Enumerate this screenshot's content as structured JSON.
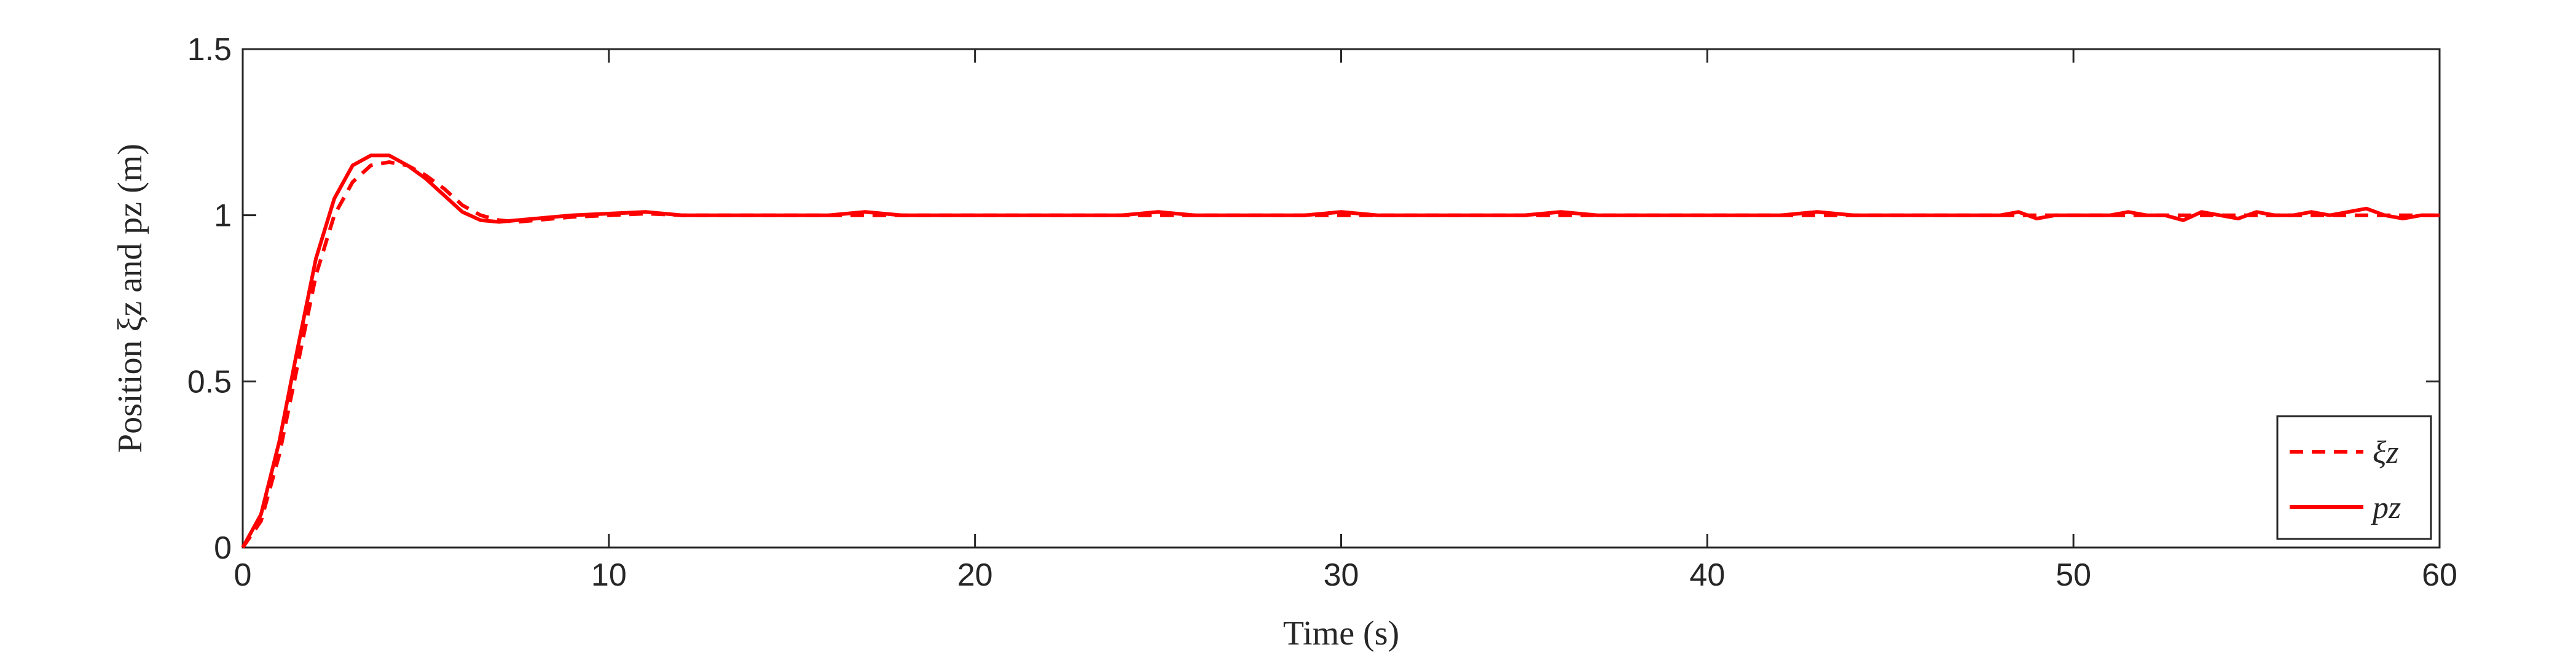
{
  "chart_data": {
    "type": "line",
    "xlabel": "Time (s)",
    "ylabel": "Position ξz and pz (m)",
    "xlim": [
      0,
      60
    ],
    "ylim": [
      0,
      1.5
    ],
    "x_ticks": [
      "0",
      "10",
      "20",
      "30",
      "40",
      "50",
      "60"
    ],
    "y_ticks": [
      "0",
      "0.5",
      "1",
      "1.5"
    ],
    "grid": false,
    "legend_position": "bottom-right",
    "series": [
      {
        "name": "ξz",
        "style": "dashed",
        "color": "#ff0000",
        "x": [
          0,
          0.5,
          1,
          1.5,
          2,
          2.5,
          3,
          3.5,
          4,
          4.5,
          5,
          5.5,
          6,
          6.5,
          7,
          7.5,
          8,
          9,
          10,
          11,
          12,
          13,
          14,
          15,
          16,
          17,
          18,
          19,
          20,
          21,
          22,
          23,
          24,
          25,
          26,
          27,
          28,
          29,
          30,
          31,
          32,
          33,
          34,
          35,
          36,
          37,
          38,
          39,
          40,
          41,
          42,
          43,
          44,
          45,
          46,
          47,
          48,
          49,
          50,
          51,
          52,
          53,
          54,
          55,
          56,
          57,
          58,
          59,
          60
        ],
        "y": [
          0,
          0.08,
          0.28,
          0.55,
          0.82,
          1.0,
          1.1,
          1.15,
          1.16,
          1.15,
          1.12,
          1.08,
          1.03,
          1.0,
          0.985,
          0.98,
          0.985,
          0.995,
          1.0,
          1.005,
          1.0,
          1.0,
          1.0,
          1.0,
          1.0,
          1.0,
          1.0,
          1.0,
          1.0,
          1.0,
          1.0,
          1.0,
          1.0,
          1.0,
          1.0,
          1.0,
          1.0,
          1.0,
          1.0,
          1.0,
          1.0,
          1.0,
          1.0,
          1.0,
          1.0,
          1.0,
          1.0,
          1.0,
          1.0,
          1.0,
          1.0,
          1.0,
          1.0,
          1.0,
          1.0,
          1.0,
          1.0,
          1.0,
          1.0,
          1.0,
          1.0,
          1.0,
          1.0,
          1.0,
          1.0,
          1.0,
          1.0,
          1.0,
          1.0
        ]
      },
      {
        "name": "pz",
        "style": "solid",
        "color": "#ff0000",
        "x": [
          0,
          0.5,
          1,
          1.5,
          2,
          2.5,
          3,
          3.5,
          4,
          4.5,
          5,
          5.5,
          6,
          6.5,
          7,
          7.5,
          8,
          9,
          10,
          11,
          12,
          13,
          14,
          15,
          16,
          17,
          18,
          19,
          20,
          21,
          22,
          23,
          24,
          25,
          26,
          27,
          28,
          29,
          30,
          31,
          32,
          33,
          34,
          35,
          36,
          37,
          38,
          39,
          40,
          41,
          42,
          43,
          44,
          45,
          46,
          47,
          48,
          48.5,
          49,
          49.5,
          50,
          50.5,
          51,
          51.5,
          52,
          52.5,
          53,
          53.5,
          54,
          54.5,
          55,
          55.5,
          56,
          56.5,
          57,
          57.5,
          58,
          58.5,
          59,
          59.5,
          60
        ],
        "y": [
          0,
          0.1,
          0.32,
          0.6,
          0.87,
          1.05,
          1.15,
          1.18,
          1.18,
          1.15,
          1.11,
          1.06,
          1.01,
          0.985,
          0.98,
          0.985,
          0.99,
          1.0,
          1.005,
          1.01,
          1.0,
          1.0,
          1.0,
          1.0,
          1.0,
          1.01,
          1.0,
          1.0,
          1.0,
          1.0,
          1.0,
          1.0,
          1.0,
          1.01,
          1.0,
          1.0,
          1.0,
          1.0,
          1.01,
          1.0,
          1.0,
          1.0,
          1.0,
          1.0,
          1.01,
          1.0,
          1.0,
          1.0,
          1.0,
          1.0,
          1.0,
          1.01,
          1.0,
          1.0,
          1.0,
          1.0,
          1.0,
          1.01,
          0.99,
          1.0,
          1.0,
          1.0,
          1.0,
          1.01,
          1.0,
          1.0,
          0.985,
          1.01,
          1.0,
          0.99,
          1.01,
          1.0,
          1.0,
          1.01,
          1.0,
          1.01,
          1.02,
          1.0,
          0.99,
          1.0,
          1.0
        ]
      }
    ]
  }
}
